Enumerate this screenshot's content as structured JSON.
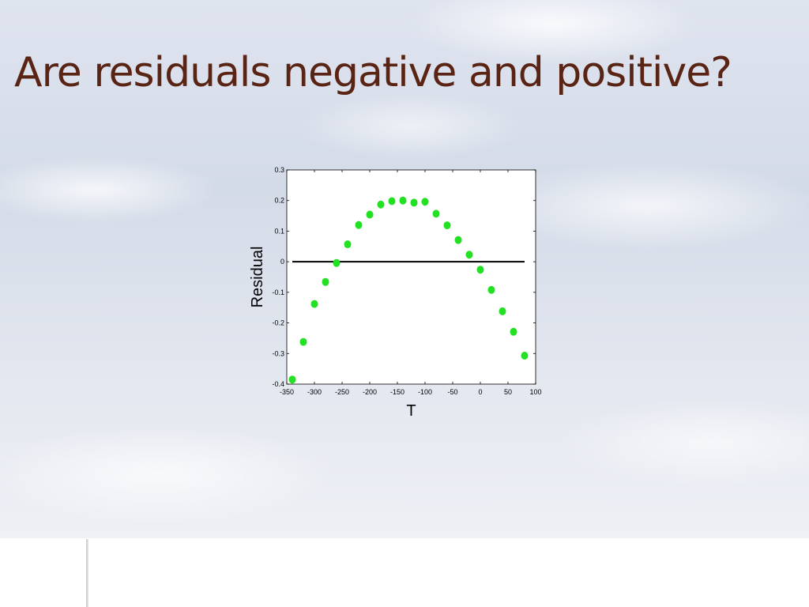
{
  "slide": {
    "title": "Are residuals negative and positive?"
  },
  "chart_data": {
    "type": "scatter",
    "title": "",
    "xlabel": "T",
    "ylabel": "Residual",
    "xlim": [
      -350,
      100
    ],
    "ylim": [
      -0.4,
      0.3
    ],
    "xticks": [
      -350,
      -300,
      -250,
      -200,
      -150,
      -100,
      -50,
      0,
      50,
      100
    ],
    "yticks": [
      -0.4,
      -0.3,
      -0.2,
      -0.1,
      0,
      0.1,
      0.2,
      0.3
    ],
    "xtick_labels": [
      "-350",
      "-300",
      "-250",
      "-200",
      "-150",
      "-100",
      "-50",
      "0",
      "50",
      "100"
    ],
    "ytick_labels": [
      "-0.4",
      "-0.3",
      "-0.2",
      "-0.1",
      "0",
      "0.1",
      "0.2",
      "0.3"
    ],
    "grid": false,
    "marker_color": "#22e022",
    "reference_line": {
      "y": 0,
      "x": [
        -340,
        80
      ],
      "color": "#000000"
    },
    "series": [
      {
        "x": [
          -340,
          -320,
          -300,
          -280,
          -260,
          -240,
          -220,
          -200,
          -180,
          -160,
          -140,
          -120,
          -100,
          -80,
          -60,
          -40,
          -20,
          0,
          20,
          40,
          60,
          80
        ],
        "y": [
          -0.385,
          -0.262,
          -0.138,
          -0.066,
          -0.004,
          0.057,
          0.12,
          0.154,
          0.187,
          0.198,
          0.2,
          0.193,
          0.196,
          0.157,
          0.119,
          0.071,
          0.023,
          -0.026,
          -0.092,
          -0.162,
          -0.229,
          -0.307
        ]
      }
    ]
  }
}
